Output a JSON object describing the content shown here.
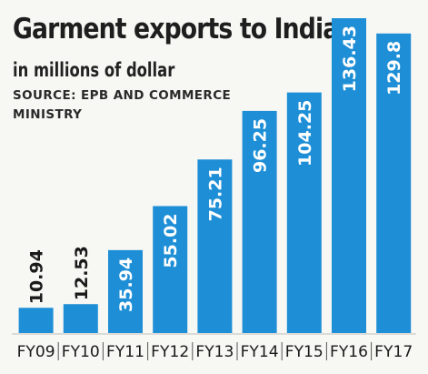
{
  "chart_data": {
    "type": "bar",
    "title": "Garment exports to India",
    "subtitle": "in millions of dollar",
    "source": "SOURCE: EPB AND COMMERCE MINISTRY",
    "categories": [
      "FY09",
      "FY10",
      "FY11",
      "FY12",
      "FY13",
      "FY14",
      "FY15",
      "FY16",
      "FY17"
    ],
    "values": [
      10.94,
      12.53,
      35.94,
      55.02,
      75.21,
      96.25,
      104.25,
      136.43,
      129.8
    ],
    "value_labels": [
      "10.94",
      "12.53",
      "35.94",
      "55.02",
      "75.21",
      "96.25",
      "104.25",
      "136.43",
      "129.8"
    ],
    "xlabel": "",
    "ylabel": "",
    "ylim": [
      0,
      136.43
    ],
    "grid": false,
    "bar_color": "#1e8fd6",
    "inside_label_color": "#ffffff",
    "outside_label_color": "#1a1a1a"
  }
}
